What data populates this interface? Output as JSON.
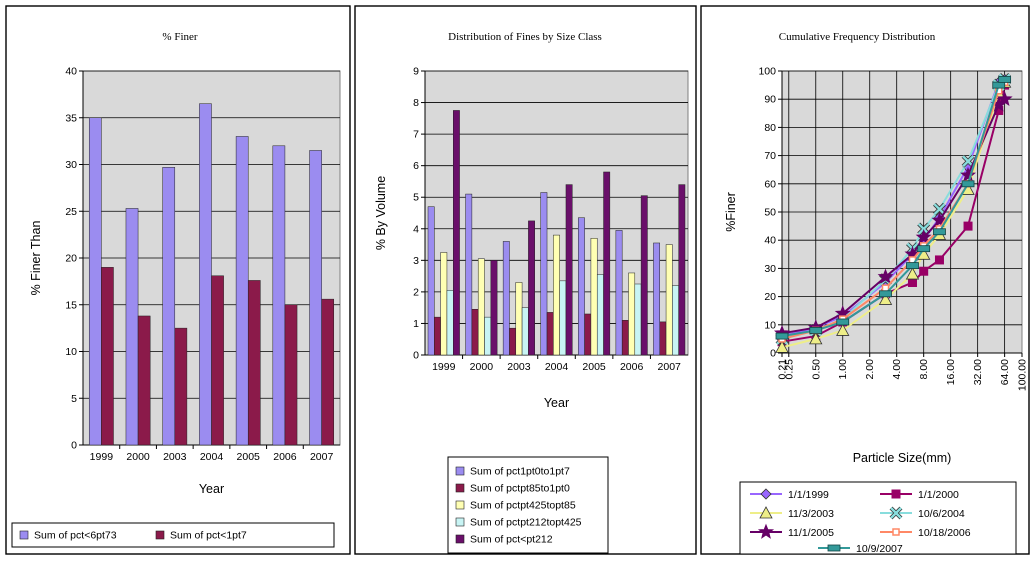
{
  "chart_data": [
    {
      "type": "bar",
      "title": "% Finer",
      "xlabel": "Year",
      "ylabel": "% Finer Than",
      "ylim": [
        0,
        40
      ],
      "yticks": [
        "0",
        "5",
        "10",
        "15",
        "20",
        "25",
        "30",
        "35",
        "40"
      ],
      "categories": [
        "1999",
        "2000",
        "2003",
        "2004",
        "2005",
        "2006",
        "2007"
      ],
      "grid": true,
      "legend_position": "bottom",
      "series": [
        {
          "name": "Sum of pct<6pt73",
          "color": "#9b8cf0",
          "values": [
            35.0,
            25.3,
            29.7,
            36.5,
            33.0,
            32.0,
            31.5
          ]
        },
        {
          "name": "Sum of pct<1pt7",
          "color": "#8b1a4a",
          "values": [
            19.0,
            13.8,
            12.5,
            18.1,
            17.6,
            15.0,
            15.6
          ]
        }
      ]
    },
    {
      "type": "bar",
      "title": "Distribution of Fines by Size Class",
      "xlabel": "Year",
      "ylabel": "% By Volume",
      "ylim": [
        0,
        9
      ],
      "yticks": [
        "0",
        "1",
        "2",
        "3",
        "4",
        "5",
        "6",
        "7",
        "8",
        "9"
      ],
      "categories": [
        "1999",
        "2000",
        "2003",
        "2004",
        "2005",
        "2006",
        "2007"
      ],
      "grid": true,
      "legend_position": "bottom",
      "series": [
        {
          "name": "Sum of pct1pt0to1pt7",
          "color": "#9b8cf0",
          "values": [
            4.7,
            5.1,
            3.6,
            5.15,
            4.35,
            3.95,
            3.55
          ]
        },
        {
          "name": "Sum of pctpt85to1pt0",
          "color": "#8b1a4a",
          "values": [
            1.2,
            1.45,
            0.85,
            1.35,
            1.3,
            1.1,
            1.05
          ]
        },
        {
          "name": "Sum of pctpt425topt85",
          "color": "#ffffb3",
          "values": [
            3.25,
            3.05,
            2.3,
            3.8,
            3.7,
            2.6,
            3.5
          ]
        },
        {
          "name": "Sum of pctpt212topt425",
          "color": "#c8f4f4",
          "values": [
            2.05,
            1.2,
            1.5,
            2.35,
            2.55,
            2.25,
            2.2
          ]
        },
        {
          "name": "Sum of pct<pt212",
          "color": "#6a0f6a",
          "values": [
            7.75,
            3.0,
            4.25,
            5.4,
            5.8,
            5.05,
            5.4
          ]
        }
      ]
    },
    {
      "type": "line",
      "title": "Cumulative Frequency Distribution",
      "xlabel": "Particle Size(mm)",
      "ylabel": "%Finer",
      "ylim": [
        0,
        100
      ],
      "yticks": [
        "0",
        "10",
        "20",
        "30",
        "40",
        "50",
        "60",
        "70",
        "80",
        "90",
        "100"
      ],
      "x": [
        0.21,
        0.25,
        0.5,
        1.0,
        2.0,
        4.0,
        8.0,
        16.0,
        32.0,
        64.0,
        100.0
      ],
      "xtick_labels": [
        "0.21",
        "0.25",
        "0.50",
        "1.00",
        "2.00",
        "4.00",
        "8.00",
        "16.00",
        "32.00",
        "64.00",
        "100.00"
      ],
      "x_scale": "log",
      "grid": true,
      "legend_position": "bottom",
      "series": [
        {
          "name": "1/1/1999",
          "color": "#9966ff",
          "marker": "diamond",
          "x": [
            0.21,
            0.5,
            1.0,
            3.0,
            6.0,
            8.0,
            12.0,
            25.0,
            55.0,
            64.0
          ],
          "y": [
            6,
            9,
            13,
            25,
            35,
            40,
            48,
            66,
            96,
            97
          ]
        },
        {
          "name": "1/1/2000",
          "color": "#990066",
          "marker": "square",
          "x": [
            0.21,
            0.5,
            1.0,
            3.0,
            6.0,
            8.0,
            12.0,
            25.0,
            55.0,
            64.0
          ],
          "y": [
            4,
            6,
            11,
            21,
            25,
            29,
            33,
            45,
            86,
            95
          ]
        },
        {
          "name": "11/3/2003",
          "color": "#eeee88",
          "marker": "triangle",
          "x": [
            0.21,
            0.5,
            1.0,
            3.0,
            6.0,
            8.0,
            12.0,
            25.0,
            55.0,
            64.0
          ],
          "y": [
            2,
            5,
            8,
            19,
            28,
            35,
            42,
            58,
            92,
            96
          ]
        },
        {
          "name": "10/6/2004",
          "color": "#88dddd",
          "marker": "x",
          "x": [
            0.21,
            0.5,
            1.0,
            3.0,
            6.0,
            8.0,
            12.0,
            25.0,
            55.0,
            64.0
          ],
          "y": [
            5,
            8,
            12,
            26,
            37,
            44,
            51,
            68,
            95,
            97
          ]
        },
        {
          "name": "11/1/2005",
          "color": "#660066",
          "marker": "star",
          "x": [
            0.21,
            0.5,
            1.0,
            3.0,
            6.0,
            8.0,
            12.0,
            25.0,
            55.0,
            64.0
          ],
          "y": [
            7,
            9,
            14,
            27,
            35,
            41,
            47,
            63,
            88,
            90
          ]
        },
        {
          "name": "10/18/2006",
          "color": "#ff8866",
          "marker": "circle",
          "x": [
            0.21,
            0.5,
            1.0,
            3.0,
            6.0,
            8.0,
            12.0,
            25.0,
            55.0,
            64.0
          ],
          "y": [
            5,
            8,
            12,
            23,
            33,
            38,
            44,
            60,
            93,
            96
          ]
        },
        {
          "name": "10/9/2007",
          "color": "#339999",
          "marker": "bar",
          "x": [
            0.21,
            0.5,
            1.0,
            3.0,
            6.0,
            8.0,
            12.0,
            25.0,
            55.0,
            64.0
          ],
          "y": [
            6,
            8,
            11,
            21,
            31,
            37,
            43,
            60,
            95,
            97
          ]
        }
      ]
    }
  ]
}
